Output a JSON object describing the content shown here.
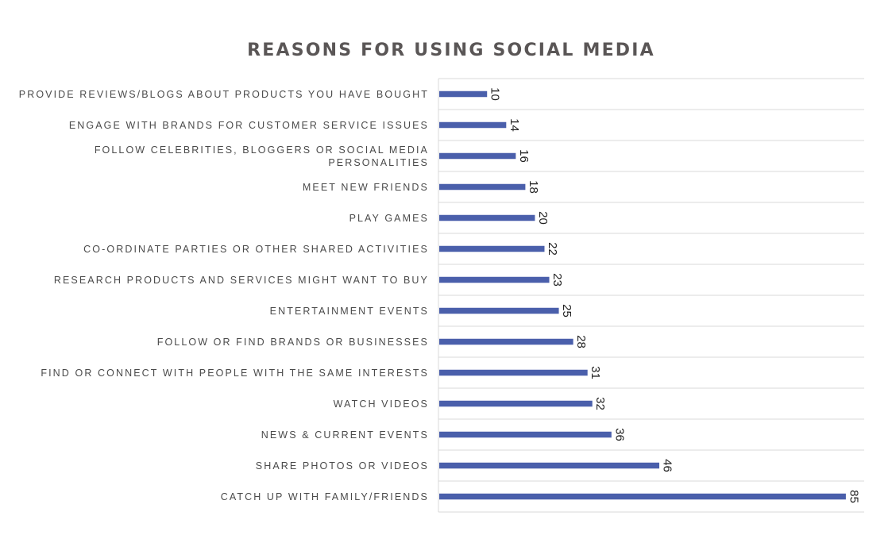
{
  "chart_data": {
    "type": "bar",
    "orientation": "horizontal",
    "title": "REASONS FOR USING SOCIAL MEDIA",
    "xlabel": "",
    "ylabel": "",
    "categories": [
      "PROVIDE REVIEWS/BLOGS ABOUT PRODUCTS YOU HAVE BOUGHT",
      "ENGAGE WITH BRANDS FOR CUSTOMER SERVICE ISSUES",
      "FOLLOW CELEBRITIES, BLOGGERS OR SOCIAL MEDIA PERSONALITIES",
      "MEET NEW FRIENDS",
      "PLAY GAMES",
      "CO-ORDINATE PARTIES OR OTHER SHARED ACTIVITIES",
      "RESEARCH PRODUCTS AND SERVICES MIGHT WANT TO BUY",
      "ENTERTAINMENT EVENTS",
      "FOLLOW OR FIND BRANDS OR BUSINESSES",
      "FIND OR CONNECT WITH PEOPLE WITH THE SAME INTERESTS",
      "WATCH VIDEOS",
      "NEWS & CURRENT EVENTS",
      "SHARE PHOTOS OR VIDEOS",
      "CATCH UP WITH FAMILY/FRIENDS"
    ],
    "category_lines": [
      [
        "PROVIDE REVIEWS/BLOGS ABOUT PRODUCTS YOU HAVE BOUGHT"
      ],
      [
        "ENGAGE WITH BRANDS FOR CUSTOMER SERVICE ISSUES"
      ],
      [
        "FOLLOW CELEBRITIES, BLOGGERS OR SOCIAL MEDIA",
        "PERSONALITIES"
      ],
      [
        "MEET NEW FRIENDS"
      ],
      [
        "PLAY GAMES"
      ],
      [
        "CO-ORDINATE PARTIES OR OTHER SHARED ACTIVITIES"
      ],
      [
        "RESEARCH PRODUCTS AND SERVICES MIGHT WANT TO BUY"
      ],
      [
        "ENTERTAINMENT EVENTS"
      ],
      [
        "FOLLOW OR FIND BRANDS OR BUSINESSES"
      ],
      [
        "FIND OR CONNECT WITH PEOPLE WITH THE SAME INTERESTS"
      ],
      [
        "WATCH VIDEOS"
      ],
      [
        "NEWS & CURRENT EVENTS"
      ],
      [
        "SHARE PHOTOS OR VIDEOS"
      ],
      [
        "CATCH UP WITH FAMILY/FRIENDS"
      ]
    ],
    "values": [
      10,
      14,
      16,
      18,
      20,
      22,
      23,
      25,
      28,
      31,
      32,
      36,
      46,
      85
    ],
    "xlim": [
      0,
      89
    ],
    "data_labels": true,
    "data_label_rotation": "vertical",
    "grid": "horizontal category separators",
    "legend": "none",
    "colors": {
      "bar": "#4a5fab",
      "title": "#5a5656",
      "label": "#4a4a4a",
      "grid": "#d9d9d9"
    }
  }
}
